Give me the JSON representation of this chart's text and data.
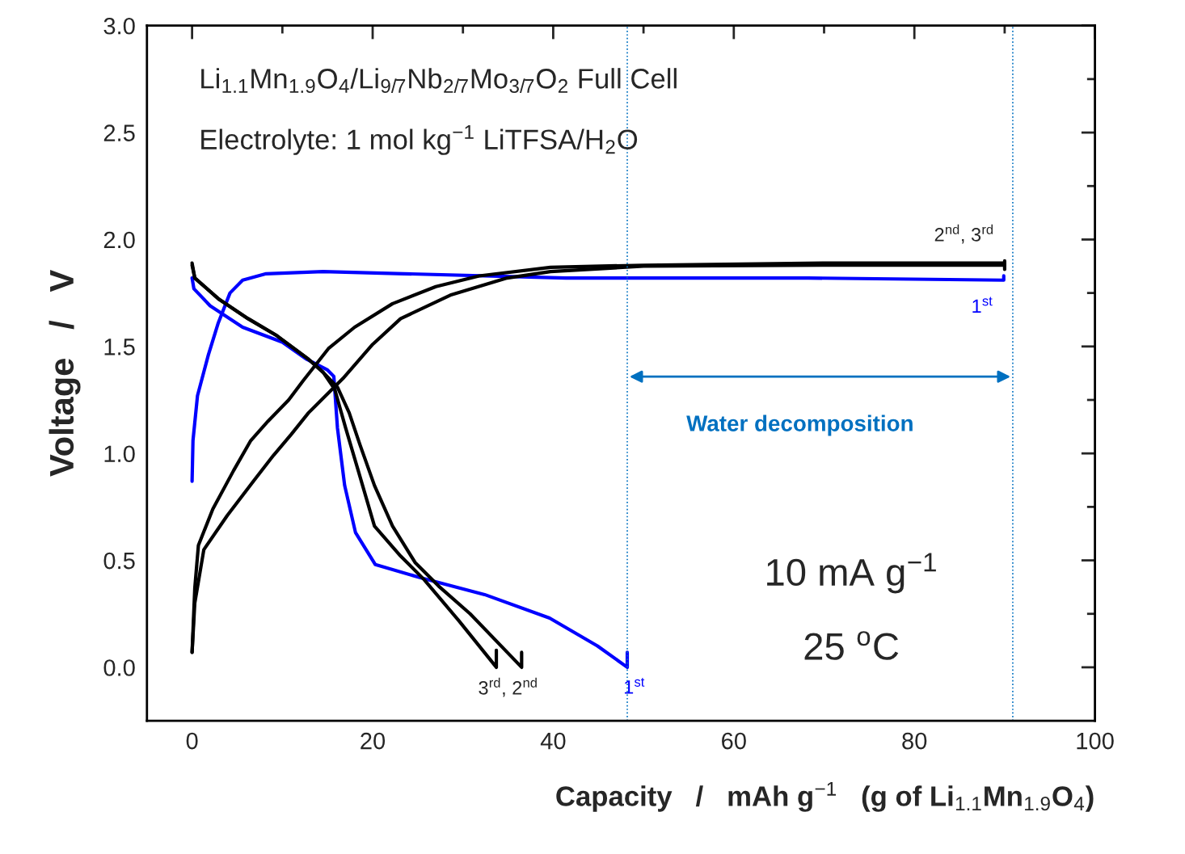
{
  "chart_data": {
    "type": "line",
    "title": "Li$_{1.1}$Mn$_{1.9}$O$_{4}$/Li$_{9/7}$Nb$_{2/7}$Mo$_{3/7}$O$_{2}$ Full Cell",
    "subtitle": "Electrolyte: 1 mol kg$^{−1}$ LiTFSA/H$_{2}$O",
    "xlabel": "Capacity   /   mAh g$^{−1}$   (g of Li$_{1.1}$Mn$_{1.9}$O$_{4}$)",
    "ylabel": "Voltage   /   V",
    "xlim": [
      -5,
      100
    ],
    "ylim": [
      -0.25,
      3.0
    ],
    "xticks": [
      0,
      {
        "value": 10,
        "label": null
      },
      20,
      {
        "value": 30,
        "label": null
      },
      40,
      {
        "value": 50,
        "label": null
      },
      60,
      {
        "value": 70,
        "label": null
      },
      80,
      {
        "value": 90,
        "label": null
      },
      100
    ],
    "yticks": [
      {
        "value": 0,
        "label": "0.0"
      },
      {
        "value": 0.25,
        "label": null
      },
      {
        "value": 0.5,
        "label": "0.5"
      },
      {
        "value": 0.75,
        "label": null
      },
      {
        "value": 1.0,
        "label": "1.0"
      },
      {
        "value": 1.25,
        "label": null
      },
      {
        "value": 1.5,
        "label": "1.5"
      },
      {
        "value": 1.75,
        "label": null
      },
      {
        "value": 2.0,
        "label": "2.0"
      },
      {
        "value": 2.25,
        "label": null
      },
      {
        "value": 2.5,
        "label": "2.5"
      },
      {
        "value": 2.75,
        "label": null
      },
      {
        "value": 3.0,
        "label": "3.0"
      }
    ],
    "grid": false,
    "marker": "none",
    "line_style": "solid",
    "series": [
      {
        "color": "#0000ff",
        "x": [
          0,
          0.1,
          0.6,
          1.8,
          2.9,
          4.2,
          5.6,
          8.2,
          14.5,
          23.5,
          41.4,
          48,
          68.2,
          89.9,
          89.9
        ],
        "values": [
          0.87,
          1.06,
          1.27,
          1.46,
          1.61,
          1.75,
          1.81,
          1.84,
          1.85,
          1.84,
          1.82,
          1.82,
          1.82,
          1.81,
          1.83
        ]
      },
      {
        "color": "#0000ff",
        "x": [
          0,
          0.2,
          2,
          5.6,
          10,
          12.7,
          15,
          15.7,
          16.1,
          16.9,
          18.1,
          20.3,
          25.2,
          32.4,
          39.6,
          44.9,
          48.2,
          48.2
        ],
        "values": [
          1.82,
          1.77,
          1.69,
          1.59,
          1.52,
          1.44,
          1.39,
          1.36,
          1.12,
          0.85,
          0.63,
          0.48,
          0.42,
          0.34,
          0.23,
          0.1,
          0.0,
          0.07
        ]
      },
      {
        "color": "#000000",
        "x": [
          0,
          0.3,
          0.7,
          2.3,
          4.6,
          6.5,
          8.4,
          10.7,
          12.3,
          15.1,
          18,
          22.2,
          27,
          31.8,
          39.7,
          50,
          70,
          90,
          90
        ],
        "values": [
          0.07,
          0.37,
          0.57,
          0.74,
          0.92,
          1.06,
          1.15,
          1.25,
          1.34,
          1.49,
          1.59,
          1.7,
          1.78,
          1.83,
          1.87,
          1.88,
          1.89,
          1.89,
          1.86
        ]
      },
      {
        "color": "#000000",
        "x": [
          0,
          0.3,
          1.3,
          3.9,
          6.8,
          9,
          11,
          12.9,
          16.7,
          20,
          23.1,
          28.6,
          34.9,
          39.7,
          50,
          70,
          90,
          90
        ],
        "values": [
          0.07,
          0.3,
          0.55,
          0.71,
          0.87,
          0.99,
          1.09,
          1.19,
          1.35,
          1.51,
          1.63,
          1.74,
          1.82,
          1.85,
          1.875,
          1.88,
          1.88,
          1.9
        ]
      },
      {
        "color": "#000000",
        "x": [
          0,
          0.3,
          3,
          6.2,
          9.4,
          12.9,
          14.5,
          15.8,
          17,
          18.4,
          20.2,
          23.1,
          25.7,
          29.5,
          33.7,
          33.7
        ],
        "values": [
          1.89,
          1.82,
          1.72,
          1.63,
          1.55,
          1.44,
          1.38,
          1.3,
          1.12,
          0.92,
          0.66,
          0.52,
          0.41,
          0.22,
          0.0,
          0.08
        ]
      },
      {
        "color": "#000000",
        "x": [
          0,
          0.3,
          3,
          6.2,
          9.4,
          12.9,
          14.5,
          16.1,
          17.4,
          18.6,
          20.2,
          22.2,
          24.7,
          27.3,
          30.8,
          36.5,
          36.5
        ],
        "values": [
          1.88,
          1.82,
          1.72,
          1.63,
          1.55,
          1.44,
          1.38,
          1.31,
          1.19,
          1.04,
          0.85,
          0.66,
          0.49,
          0.38,
          0.25,
          0.0,
          0.07
        ]
      }
    ],
    "ref_lines": [
      {
        "axis": "x",
        "value": 48.2,
        "color": "#0070c0",
        "line_style": "dotted"
      },
      {
        "axis": "x",
        "value": 90.9,
        "color": "#0070c0",
        "line_style": "dotted"
      }
    ],
    "annotations": [
      "Water decomposition",
      "10 mA g$^{−1}$",
      "25 $^{o}$C",
      "1$^{st}$",
      "2$^{nd}$, 3$^{rd}$",
      "3$^{rd}$, 2$^{nd}$",
      "1$^{st}$"
    ]
  }
}
